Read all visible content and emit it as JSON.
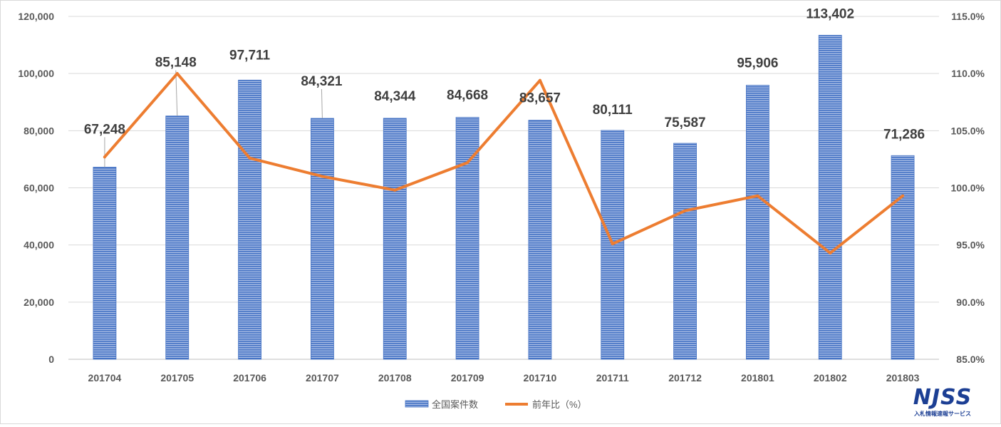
{
  "chart_data": {
    "type": "bar+line",
    "categories": [
      "201704",
      "201705",
      "201706",
      "201707",
      "201708",
      "201709",
      "201710",
      "201711",
      "201712",
      "201801",
      "201802",
      "201803"
    ],
    "series": [
      {
        "name": "全国案件数",
        "type": "bar",
        "axis": "left",
        "values": [
          67248,
          85148,
          97711,
          84321,
          84344,
          84668,
          83657,
          80111,
          75587,
          95906,
          113402,
          71286
        ],
        "labels": [
          "67,248",
          "85,148",
          "97,711",
          "84,321",
          "84,344",
          "84,668",
          "83,657",
          "80,111",
          "75,587",
          "95,906",
          "113,402",
          "71,286"
        ]
      },
      {
        "name": "前年比（%）",
        "type": "line",
        "axis": "right",
        "values": [
          102.7,
          110.0,
          102.6,
          101.0,
          99.8,
          102.2,
          109.4,
          95.1,
          98.0,
          99.3,
          94.3,
          99.3
        ]
      }
    ],
    "left_axis": {
      "ylim": [
        0,
        120000
      ],
      "ticks": [
        0,
        20000,
        40000,
        60000,
        80000,
        100000,
        120000
      ],
      "tick_labels": [
        "0",
        "20,000",
        "40,000",
        "60,000",
        "80,000",
        "100,000",
        "120,000"
      ]
    },
    "right_axis": {
      "ylim": [
        85,
        115
      ],
      "ticks": [
        85,
        90,
        95,
        100,
        105,
        110,
        115
      ],
      "tick_labels": [
        "85.0%",
        "90.0%",
        "95.0%",
        "100.0%",
        "105.0%",
        "110.0%",
        "115.0%"
      ]
    },
    "grid": true,
    "legend_position": "bottom",
    "colors": {
      "bar": "#4472c4",
      "line": "#ed7d31",
      "grid": "#d9d9d9"
    }
  },
  "logo": {
    "main": "NJSS",
    "sub": "入札情報速報サービス"
  }
}
